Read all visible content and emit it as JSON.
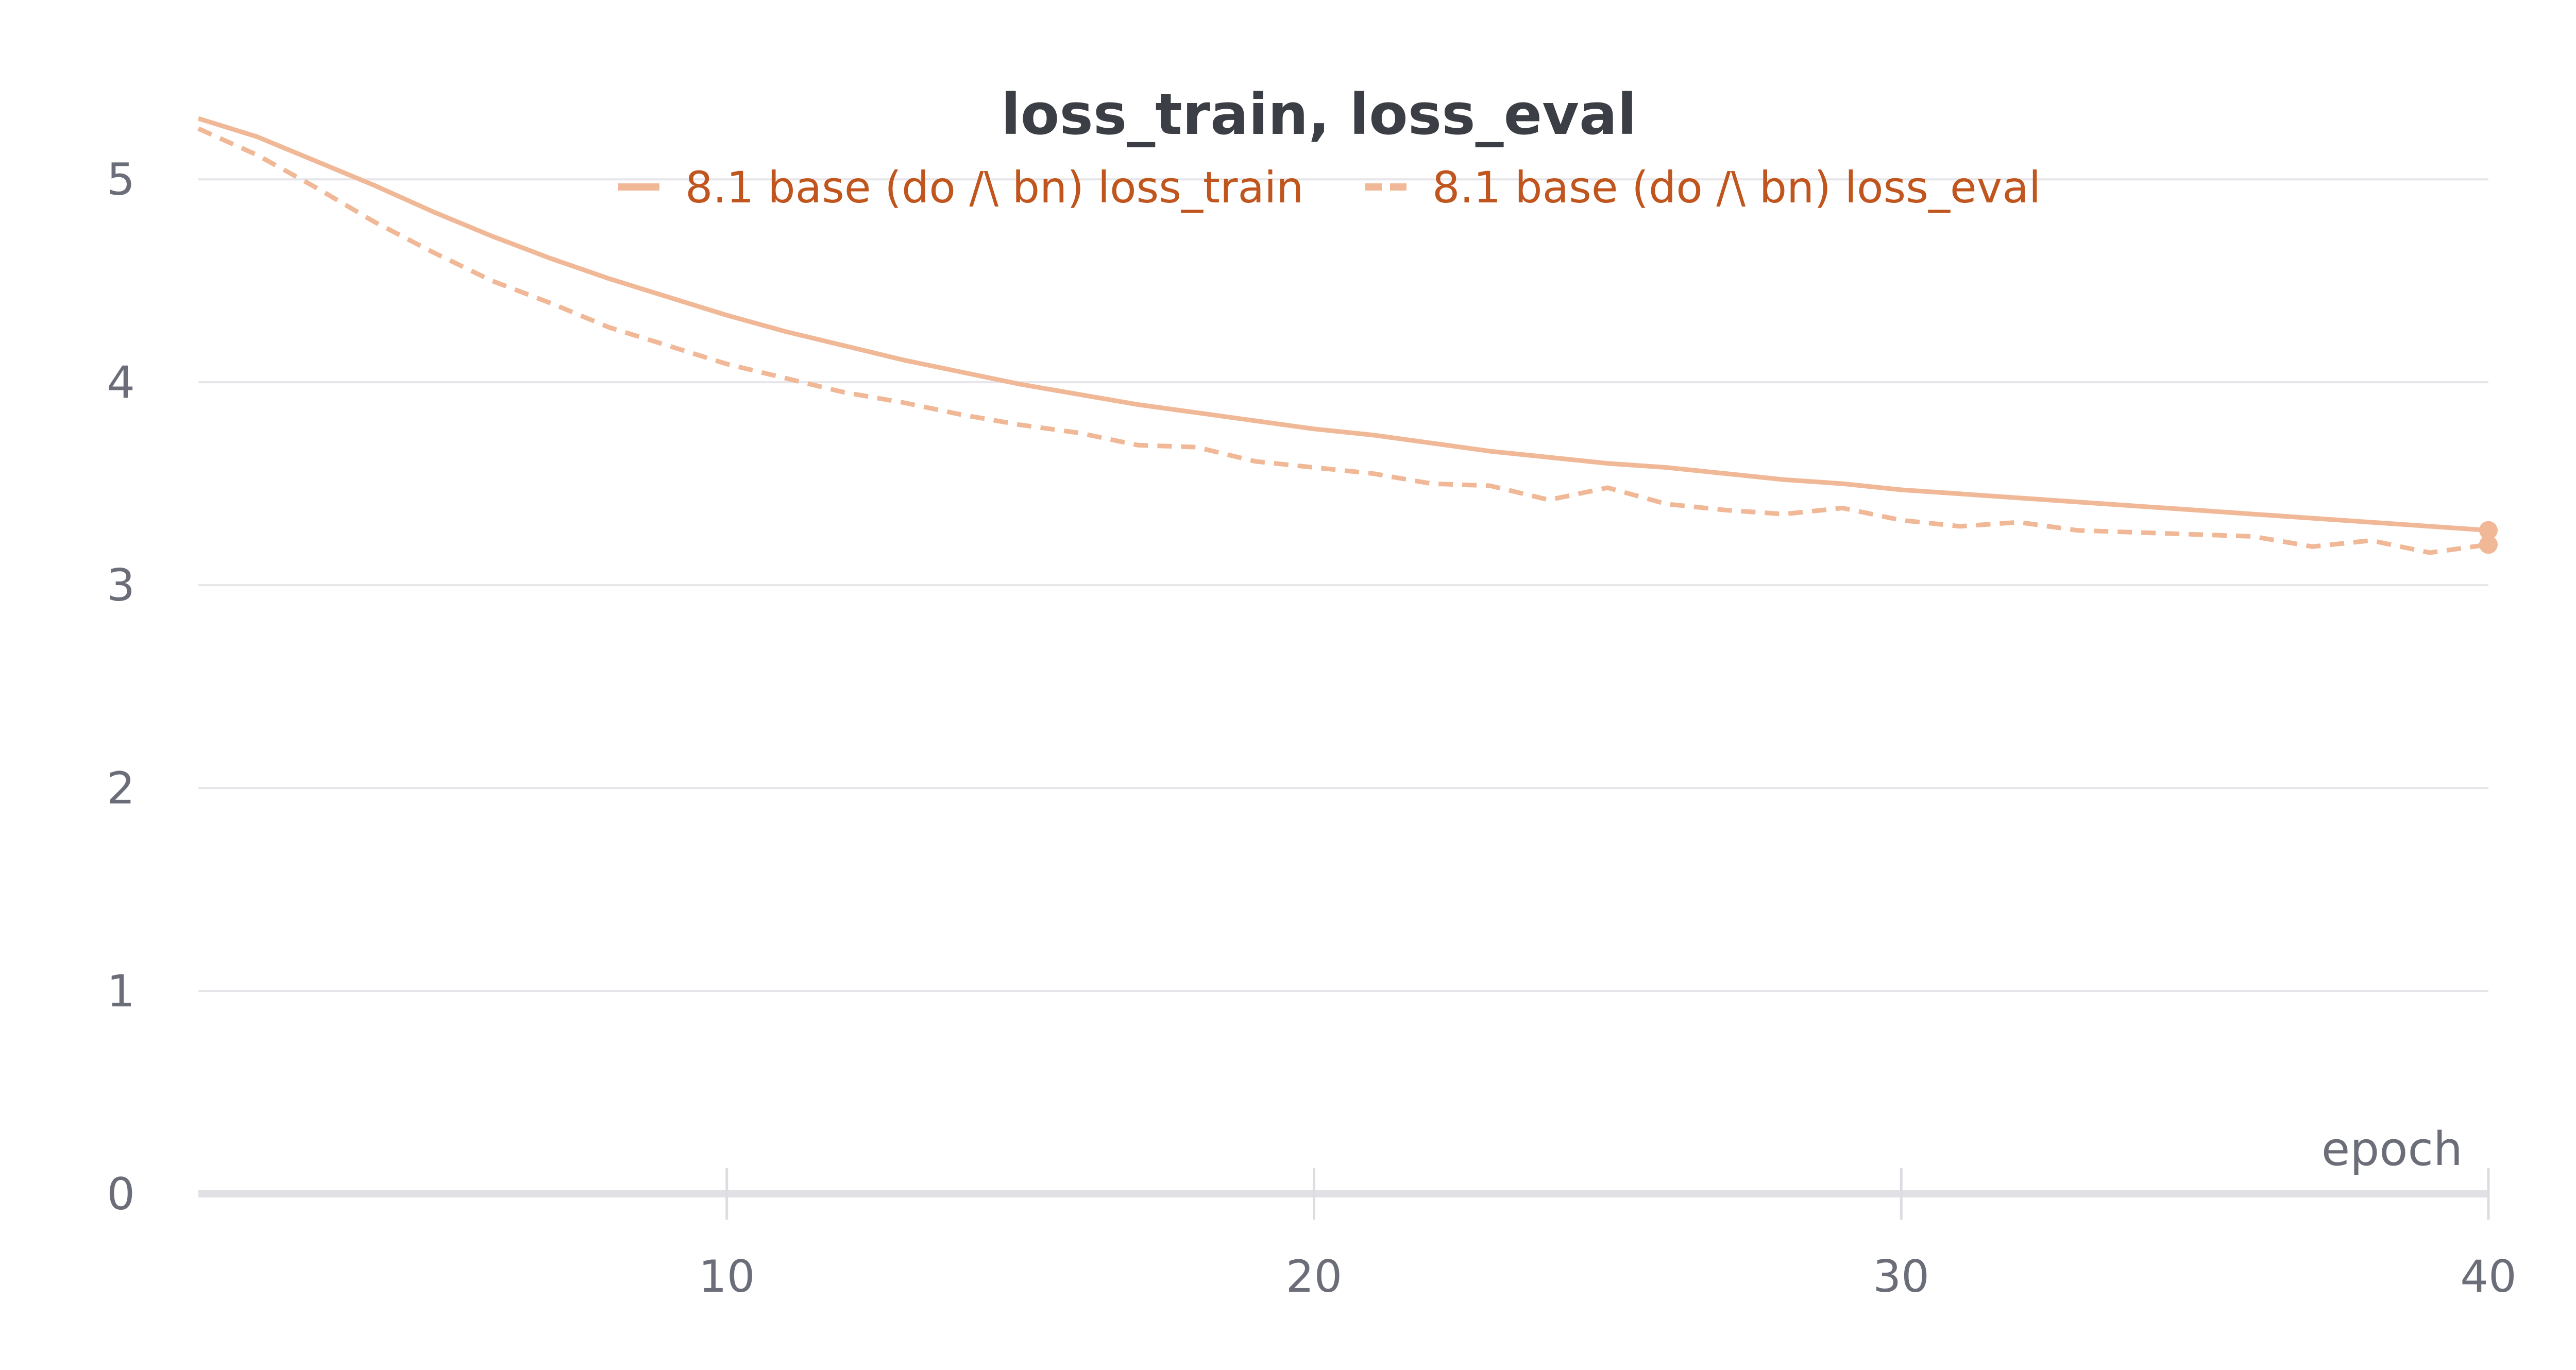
{
  "chart_data": {
    "type": "line",
    "title": "loss_train, loss_eval",
    "xlabel": "epoch",
    "ylabel": "",
    "xlim": [
      1,
      40
    ],
    "ylim": [
      0,
      5.3
    ],
    "x_ticks": [
      10,
      20,
      30,
      40
    ],
    "y_ticks": [
      0,
      1,
      2,
      3,
      4,
      5
    ],
    "grid": true,
    "legend": "top-center",
    "x": [
      1,
      2,
      3,
      4,
      5,
      6,
      7,
      8,
      9,
      10,
      11,
      12,
      13,
      14,
      15,
      16,
      17,
      18,
      19,
      20,
      21,
      22,
      23,
      24,
      25,
      26,
      27,
      28,
      29,
      30,
      31,
      32,
      33,
      34,
      35,
      36,
      37,
      38,
      39,
      40
    ],
    "series": [
      {
        "name": "8.1 base (do /\\ bn) loss_train",
        "style": "solid",
        "color": "#f0b896",
        "values": [
          5.3,
          5.21,
          5.09,
          4.97,
          4.84,
          4.72,
          4.61,
          4.51,
          4.42,
          4.33,
          4.25,
          4.18,
          4.11,
          4.05,
          3.99,
          3.94,
          3.89,
          3.85,
          3.81,
          3.77,
          3.74,
          3.7,
          3.66,
          3.63,
          3.6,
          3.58,
          3.55,
          3.52,
          3.5,
          3.47,
          3.45,
          3.43,
          3.41,
          3.39,
          3.37,
          3.35,
          3.33,
          3.31,
          3.29,
          3.27
        ]
      },
      {
        "name": "8.1 base (do /\\ bn) loss_eval",
        "style": "dashed",
        "color": "#f0b896",
        "values": [
          5.25,
          5.12,
          4.96,
          4.79,
          4.64,
          4.5,
          4.39,
          4.27,
          4.18,
          4.09,
          4.02,
          3.95,
          3.9,
          3.84,
          3.79,
          3.75,
          3.69,
          3.68,
          3.61,
          3.58,
          3.55,
          3.5,
          3.49,
          3.42,
          3.48,
          3.4,
          3.37,
          3.35,
          3.38,
          3.32,
          3.29,
          3.31,
          3.27,
          3.26,
          3.25,
          3.24,
          3.19,
          3.22,
          3.16,
          3.2
        ]
      }
    ]
  }
}
